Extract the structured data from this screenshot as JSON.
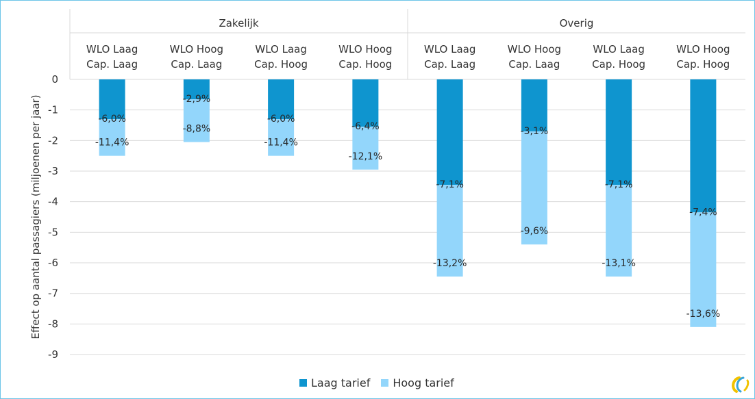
{
  "chart_data": {
    "type": "bar",
    "stacked": true,
    "ylabel": "Effect op aantal passagiers (miljoenen per jaar)",
    "ylim": [
      -9,
      0
    ],
    "yticks": [
      0,
      -1,
      -2,
      -3,
      -4,
      -5,
      -6,
      -7,
      -8,
      -9
    ],
    "grid": true,
    "legend_position": "bottom",
    "groups": [
      {
        "name": "Zakelijk",
        "categories": [
          "WLO Laag\nCap. Laag",
          "WLO Hoog\nCap. Laag",
          "WLO Laag\nCap. Hoog",
          "WLO Hoog\nCap. Hoog"
        ]
      },
      {
        "name": "Overig",
        "categories": [
          "WLO Laag\nCap. Laag",
          "WLO Hoog\nCap. Laag",
          "WLO Laag\nCap. Hoog",
          "WLO Hoog\nCap. Hoog"
        ]
      }
    ],
    "series": [
      {
        "name": "Laag tarief",
        "color": "#0f95cf",
        "values": [
          -1.3,
          -0.65,
          -1.3,
          -1.55,
          -3.45,
          -1.7,
          -3.45,
          -4.35
        ],
        "labels": [
          "-6,0%",
          "-2,9%",
          "-6,0%",
          "-6,4%",
          "-7,1%",
          "-3,1%",
          "-7,1%",
          "-7,4%"
        ]
      },
      {
        "name": "Hoog tarief",
        "color": "#93d6fb",
        "values": [
          -1.2,
          -1.4,
          -1.2,
          -1.4,
          -3.0,
          -3.7,
          -3.0,
          -3.75
        ],
        "labels": [
          "-11,4%",
          "-8,8%",
          "-11,4%",
          "-12,1%",
          "-13,2%",
          "-9,6%",
          "-13,1%",
          "-13,6%"
        ]
      }
    ]
  }
}
